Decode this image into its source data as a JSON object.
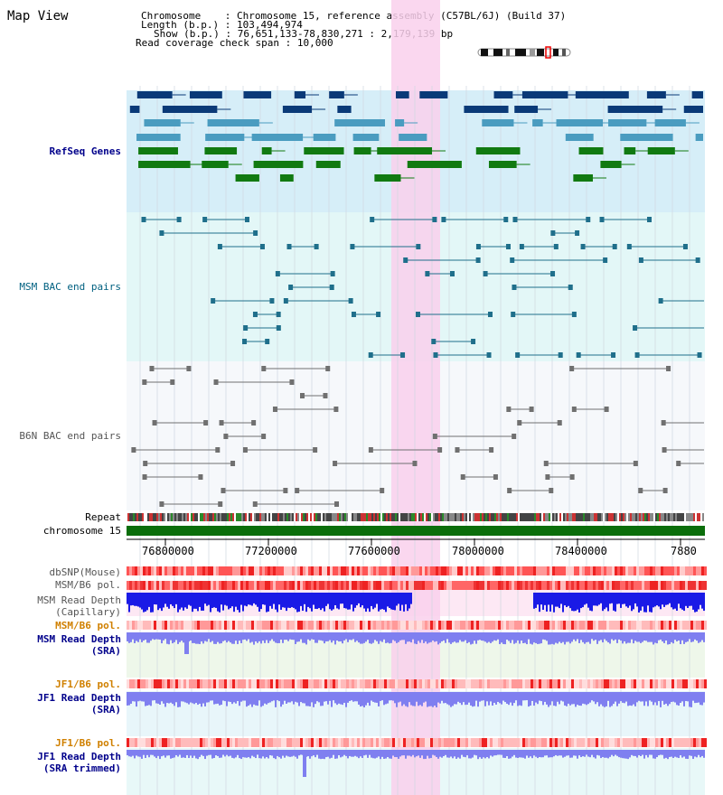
{
  "header": {
    "view_title": "Map View",
    "chromosome_label": "Chromosome",
    "chromosome_value": "Chromosome 15, reference assembly (C57BL/6J) (Build 37)",
    "length_label": "Length (b.p.)",
    "length_value": "103,494,974",
    "show_label": "Show (b.p.)",
    "show_value": "76,651,133-78,830,271 : 2,179,139 bp",
    "coverage_label": "Read coverage check span",
    "coverage_value": "10,000"
  },
  "tracks": {
    "refseq": "RefSeq Genes",
    "msm_bac": "MSM BAC end pairs",
    "b6n_bac": "B6N BAC end pairs",
    "repeat": "Repeat",
    "chromosome": "chromosome 15",
    "dbsnp": "dbSNP(Mouse)",
    "msm_b6_pol": "MSM/B6 pol.",
    "msm_depth_cap_1": "MSM Read Depth",
    "msm_depth_cap_2": "(Capillary)",
    "msm_b6_pol_sra": "MSM/B6 pol.",
    "msm_depth_sra_1": "MSM Read Depth",
    "msm_depth_sra_2": "(SRA)",
    "jf1_pol_1": "JF1/B6 pol.",
    "jf1_depth_1": "JF1 Read Depth",
    "jf1_depth_1b": "(SRA)",
    "jf1_pol_2": "JF1/B6 pol.",
    "jf1_depth_2": "JF1 Read Depth",
    "jf1_depth_2b": "(SRA trimmed)"
  },
  "axis_ticks": [
    "76800000",
    "77200000",
    "77600000",
    "78000000",
    "78400000",
    "7880"
  ],
  "colors": {
    "refseq_dark": "#0a3a78",
    "refseq_light": "#4a9cc0",
    "refseq_green": "#117a11",
    "msm_bac": "#1f6f8b",
    "b6n_bac": "#707070",
    "highlight": "#f9d0ec",
    "chromosome": "#0b6e0b",
    "depth_dark": "#1a1ae6",
    "depth_light": "#7f7ff0"
  }
}
